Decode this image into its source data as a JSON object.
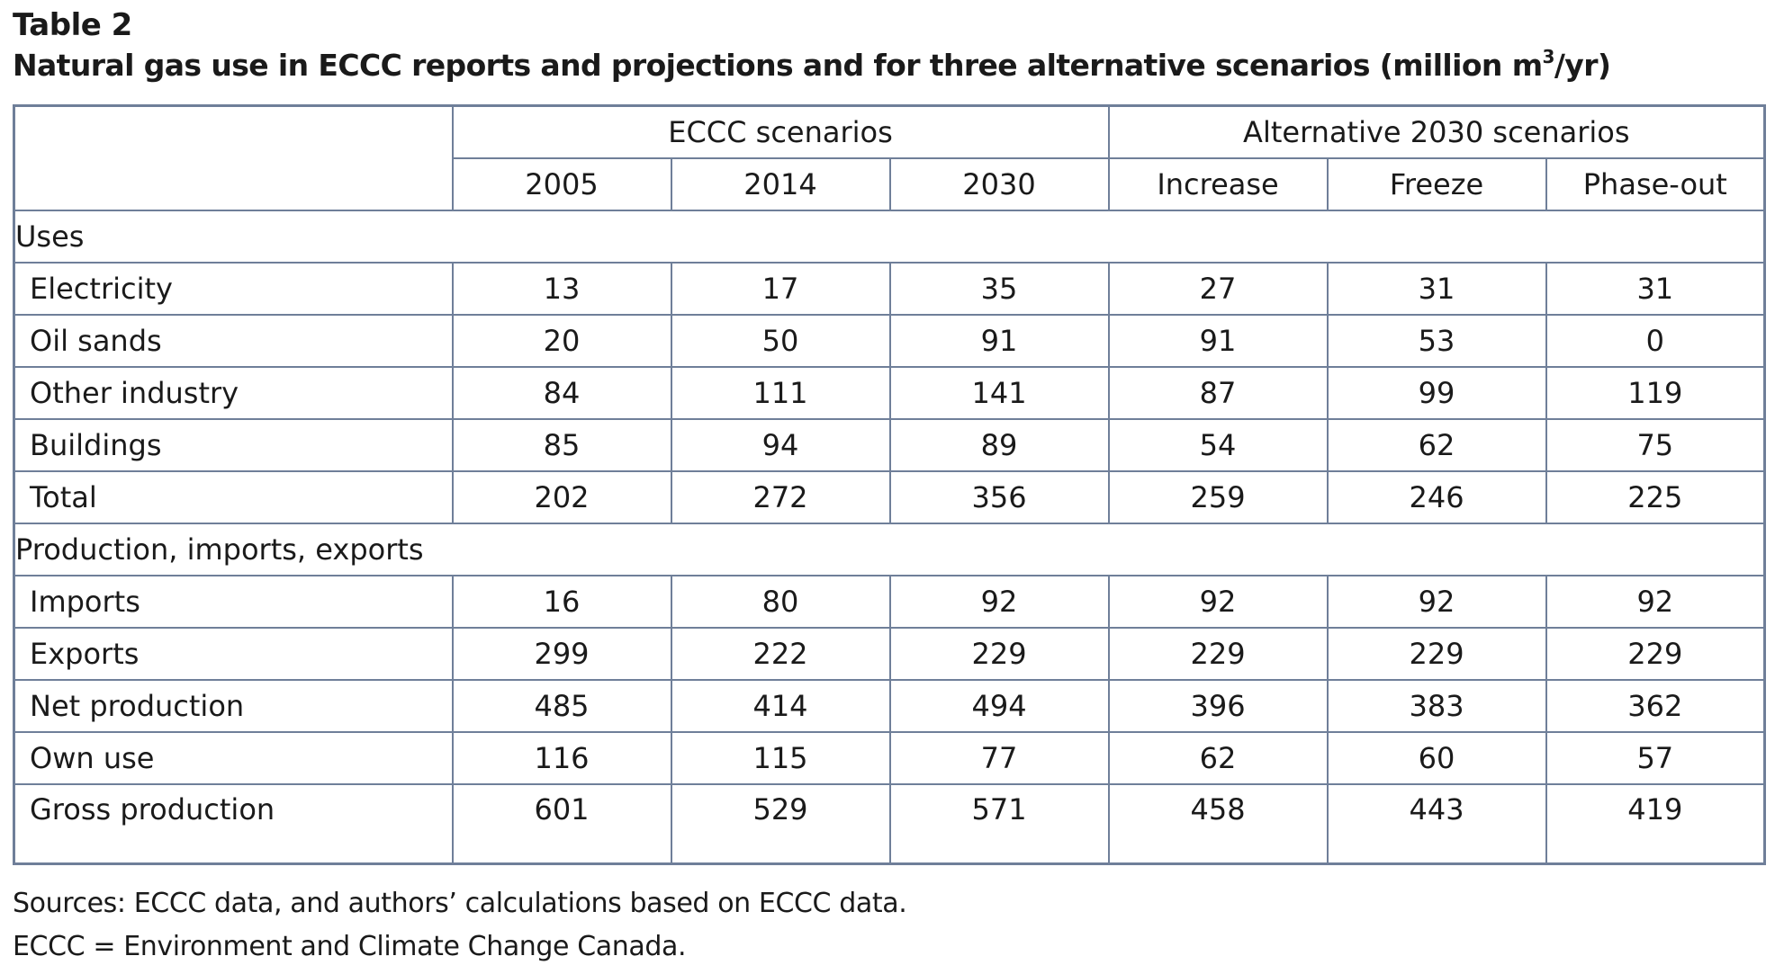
{
  "caption": {
    "label": "Table 2",
    "title_main": "Natural gas use in ECCC reports and projections and for three alternative scenarios (million m",
    "title_superscript": "3",
    "title_end": "/yr)"
  },
  "table": {
    "groups": [
      {
        "label": "ECCC scenarios",
        "span": 3
      },
      {
        "label": "Alternative 2030 scenarios",
        "span": 3
      }
    ],
    "columns": [
      "2005",
      "2014",
      "2030",
      "Increase",
      "Freeze",
      "Phase-out"
    ],
    "sections": [
      {
        "title": "Uses",
        "rows": [
          {
            "label": "Electricity",
            "values": [
              "13",
              "17",
              "35",
              "27",
              "31",
              "31"
            ]
          },
          {
            "label": "Oil sands",
            "values": [
              "20",
              "50",
              "91",
              "91",
              "53",
              "0"
            ]
          },
          {
            "label": "Other industry",
            "values": [
              "84",
              "111",
              "141",
              "87",
              "99",
              "119"
            ]
          },
          {
            "label": "Buildings",
            "values": [
              "85",
              "94",
              "89",
              "54",
              "62",
              "75"
            ]
          },
          {
            "label": "Total",
            "values": [
              "202",
              "272",
              "356",
              "259",
              "246",
              "225"
            ]
          }
        ]
      },
      {
        "title": "Production, imports, exports",
        "rows": [
          {
            "label": "Imports",
            "values": [
              "16",
              "80",
              "92",
              "92",
              "92",
              "92"
            ]
          },
          {
            "label": "Exports",
            "values": [
              "299",
              "222",
              "229",
              "229",
              "229",
              "229"
            ]
          },
          {
            "label": "Net production",
            "values": [
              "485",
              "414",
              "494",
              "396",
              "383",
              "362"
            ]
          },
          {
            "label": "Own use",
            "values": [
              "116",
              "115",
              "77",
              "62",
              "60",
              "57"
            ]
          },
          {
            "label": "Gross production",
            "values": [
              "601",
              "529",
              "571",
              "458",
              "443",
              "419"
            ]
          }
        ]
      }
    ]
  },
  "notes": {
    "sources": "Sources: ECCC data, and authors’ calculations based on ECCC data.",
    "abbreviation": "ECCC = Environment and Climate Change Canada."
  },
  "colors": {
    "border": "#6f7f99",
    "text": "#1a1a1a"
  }
}
